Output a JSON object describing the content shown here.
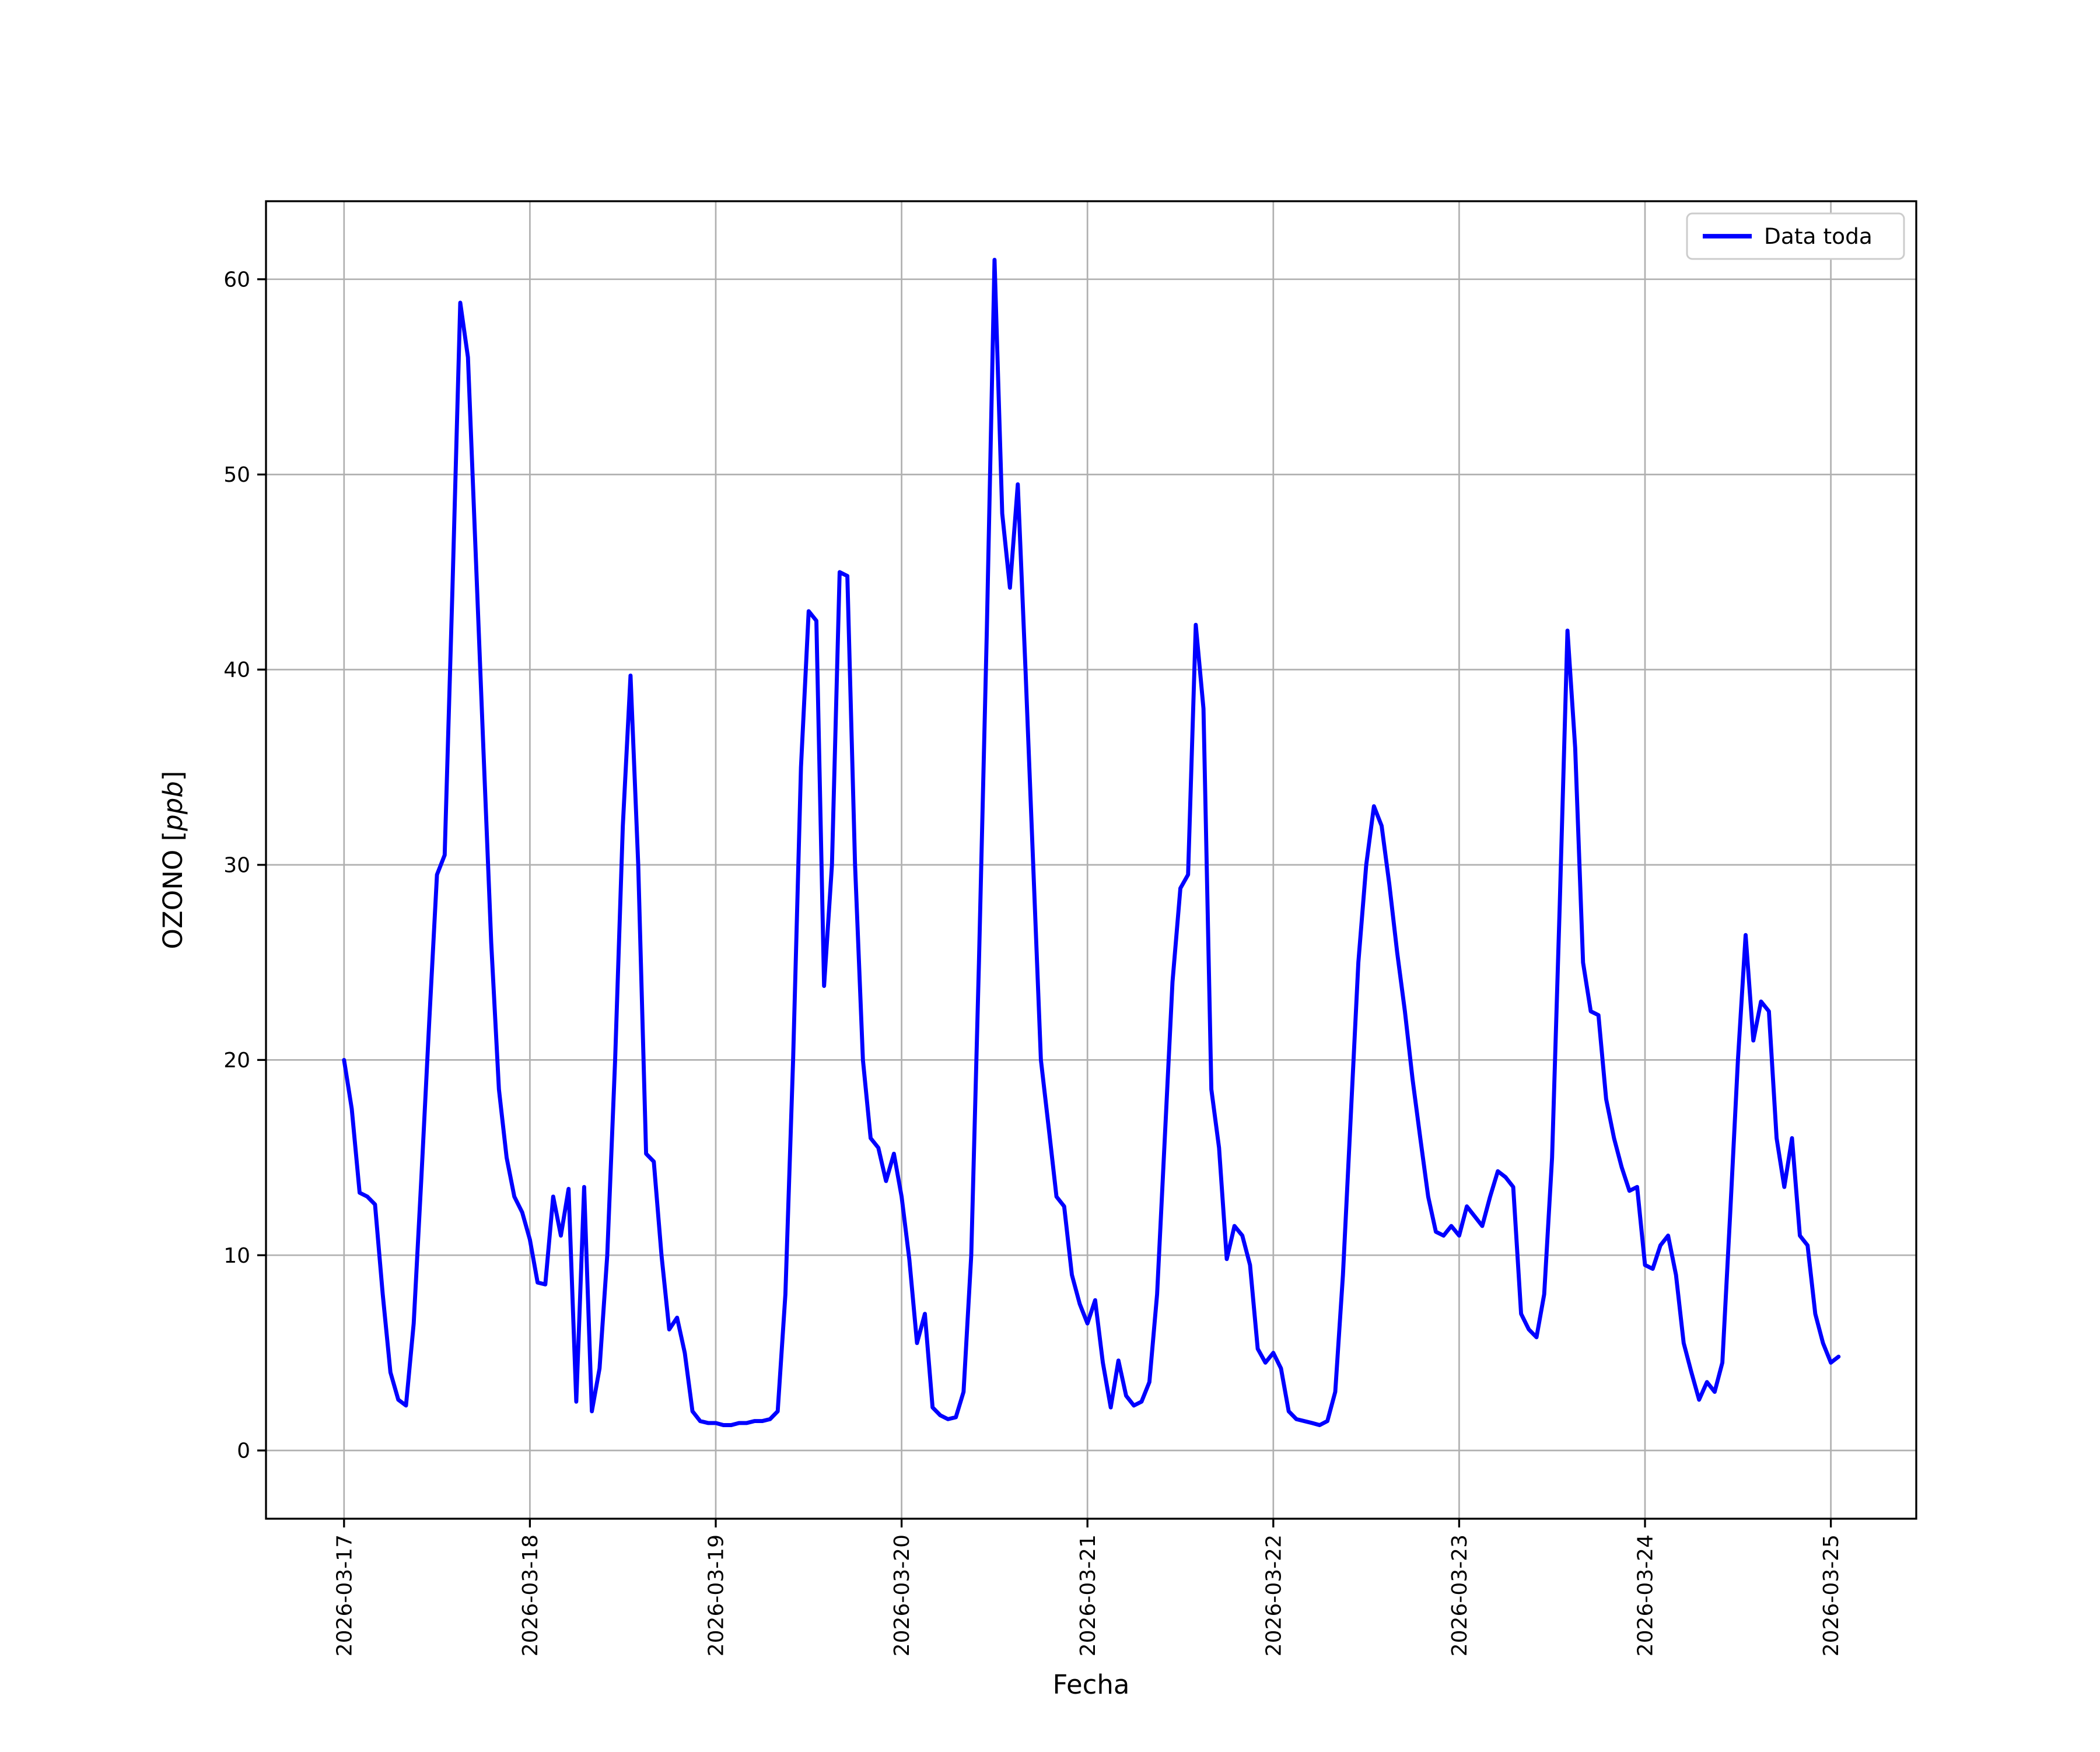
{
  "figure": {
    "background_color": "#ffffff"
  },
  "chart_data": {
    "type": "line",
    "title": "",
    "xlabel": "Fecha",
    "ylabel": "OZONO [ppb]",
    "ylabel_parts": {
      "prefix": "OZONO [",
      "italic": "ppb",
      "suffix": "]"
    },
    "grid": true,
    "grid_color": "#b0b0b0",
    "legend": {
      "position": "upper right",
      "entries": [
        {
          "label": "Data toda",
          "color": "#0000ff"
        }
      ]
    },
    "x_tick_labels": [
      "2026-03-17",
      "2026-03-18",
      "2026-03-19",
      "2026-03-20",
      "2026-03-21",
      "2026-03-22",
      "2026-03-23",
      "2026-03-24",
      "2026-03-25"
    ],
    "x_tick_positions_days": [
      0,
      1,
      2,
      3,
      4,
      5,
      6,
      7,
      8
    ],
    "x_tick_rotation_deg": 90,
    "y_ticks": [
      0,
      10,
      20,
      30,
      40,
      50,
      60
    ],
    "xlim_days": [
      -0.42,
      8.46
    ],
    "ylim": [
      -3.5,
      64
    ],
    "series": [
      {
        "name": "Data toda",
        "color": "#0000ff",
        "x_start_date": "2026-03-17",
        "x_start_hour": 0,
        "x_step_hours": 1,
        "values": [
          20.0,
          17.5,
          13.2,
          13.0,
          12.6,
          8.0,
          4.0,
          2.6,
          2.3,
          6.5,
          14.0,
          22.0,
          29.5,
          30.5,
          44.0,
          58.8,
          56.0,
          46.0,
          36.0,
          26.0,
          18.5,
          15.0,
          13.0,
          12.2,
          10.8,
          8.6,
          8.5,
          13.0,
          11.0,
          13.4,
          2.5,
          13.5,
          2.0,
          4.2,
          10.0,
          20.0,
          32.0,
          39.7,
          30.0,
          15.2,
          14.8,
          10.0,
          6.2,
          6.8,
          5.0,
          2.0,
          1.5,
          1.4,
          1.4,
          1.3,
          1.3,
          1.4,
          1.4,
          1.5,
          1.5,
          1.6,
          2.0,
          8.0,
          20.0,
          35.0,
          43.0,
          42.5,
          23.8,
          30.0,
          45.0,
          44.8,
          30.0,
          20.0,
          16.0,
          15.5,
          13.8,
          15.2,
          13.0,
          9.8,
          5.5,
          7.0,
          2.2,
          1.8,
          1.6,
          1.7,
          3.0,
          10.0,
          25.0,
          42.0,
          61.0,
          48.0,
          44.2,
          49.5,
          40.0,
          30.0,
          20.0,
          16.5,
          13.0,
          12.5,
          9.0,
          7.5,
          6.5,
          7.7,
          4.5,
          2.2,
          4.6,
          2.8,
          2.3,
          2.5,
          3.5,
          8.0,
          16.0,
          24.0,
          28.8,
          29.5,
          42.3,
          38.0,
          18.5,
          15.5,
          9.8,
          11.5,
          11.0,
          9.5,
          5.2,
          4.5,
          5.0,
          4.2,
          2.0,
          1.6,
          1.5,
          1.4,
          1.3,
          1.5,
          3.0,
          9.0,
          17.0,
          25.0,
          30.0,
          33.0,
          32.0,
          29.0,
          25.5,
          22.5,
          19.0,
          16.0,
          13.0,
          11.2,
          11.0,
          11.5,
          11.0,
          12.5,
          12.0,
          11.5,
          13.0,
          14.3,
          14.0,
          13.5,
          7.0,
          6.2,
          5.8,
          8.0,
          15.0,
          28.0,
          42.0,
          36.0,
          25.0,
          22.5,
          22.3,
          18.0,
          16.0,
          14.5,
          13.3,
          13.5,
          9.5,
          9.3,
          10.5,
          11.0,
          9.0,
          5.5,
          4.0,
          2.6,
          3.5,
          3.0,
          4.5,
          12.0,
          20.0,
          26.4,
          21.0,
          23.0,
          22.5,
          16.0,
          13.5,
          16.0,
          11.0,
          10.5,
          7.0,
          5.5,
          4.5,
          4.8
        ]
      }
    ]
  }
}
